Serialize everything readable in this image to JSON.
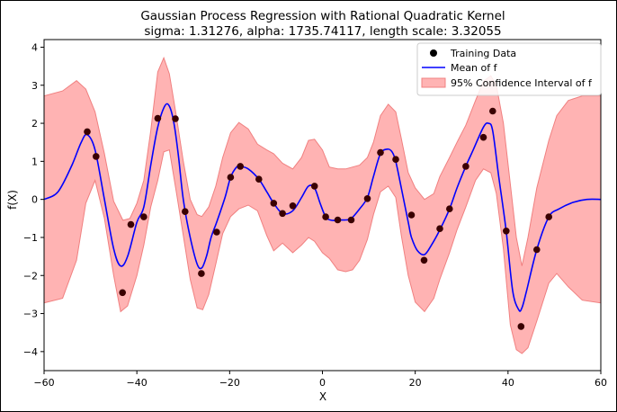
{
  "chart_data": {
    "type": "line",
    "title": "Gaussian Process Regression with Rational Quadratic Kernel",
    "subtitle": "sigma: 1.31276, alpha: 1735.74117, length scale: 3.32055",
    "xlabel": "X",
    "ylabel": "f(X)",
    "xlim": [
      -60,
      60
    ],
    "ylim": [
      -4.5,
      4.2
    ],
    "xticks": [
      "−60",
      "−40",
      "−20",
      "0",
      "20",
      "40",
      "60"
    ],
    "xtick_values": [
      -60,
      -40,
      -20,
      0,
      20,
      40,
      60
    ],
    "yticks": [
      "−4",
      "−3",
      "−2",
      "−1",
      "0",
      "1",
      "2",
      "3",
      "4"
    ],
    "ytick_values": [
      -4,
      -3,
      -2,
      -1,
      0,
      1,
      2,
      3,
      4
    ],
    "grid": false,
    "legend_position": "top-right",
    "legend": {
      "training": "Training Data",
      "mean": "Mean of f",
      "ci": "95% Confidence Interval of f"
    },
    "colors": {
      "mean": "#0000ff",
      "ci_fill": "#ff9999",
      "ci_edge": "#f08080",
      "points": "#3a0000"
    },
    "training_points": [
      [
        -50.7,
        1.78
      ],
      [
        -48.8,
        1.13
      ],
      [
        -43.1,
        -2.45
      ],
      [
        -41.3,
        -0.66
      ],
      [
        -38.5,
        -0.46
      ],
      [
        -35.5,
        2.13
      ],
      [
        -31.7,
        2.12
      ],
      [
        -29.6,
        -0.32
      ],
      [
        -26.1,
        -1.95
      ],
      [
        -22.8,
        -0.86
      ],
      [
        -19.8,
        0.58
      ],
      [
        -17.7,
        0.87
      ],
      [
        -13.7,
        0.53
      ],
      [
        -10.5,
        -0.1
      ],
      [
        -8.6,
        -0.37
      ],
      [
        -6.4,
        -0.17
      ],
      [
        -1.7,
        0.35
      ],
      [
        0.7,
        -0.46
      ],
      [
        3.3,
        -0.54
      ],
      [
        6.2,
        -0.54
      ],
      [
        9.7,
        0.02
      ],
      [
        12.5,
        1.23
      ],
      [
        15.8,
        1.05
      ],
      [
        19.2,
        -0.41
      ],
      [
        21.9,
        -1.6
      ],
      [
        25.3,
        -0.77
      ],
      [
        27.4,
        -0.25
      ],
      [
        30.9,
        0.87
      ],
      [
        34.7,
        1.63
      ],
      [
        36.7,
        2.32
      ],
      [
        39.6,
        -0.83
      ],
      [
        42.8,
        -3.34
      ],
      [
        46.2,
        -1.32
      ],
      [
        48.8,
        -0.46
      ]
    ],
    "mean_curve": {
      "x": [
        -60,
        -57,
        -54,
        -52,
        -50.7,
        -49,
        -47,
        -45,
        -43.5,
        -42,
        -40,
        -38.5,
        -37,
        -35.5,
        -34,
        -33,
        -32,
        -31,
        -30,
        -28.5,
        -27,
        -26,
        -25,
        -24,
        -22.8,
        -21,
        -19.8,
        -18.5,
        -17.7,
        -16,
        -13.7,
        -12,
        -10.5,
        -8.6,
        -6.4,
        -4.5,
        -3,
        -1.7,
        -0.5,
        0.7,
        2,
        3.3,
        5,
        6.2,
        8,
        9.7,
        11,
        12.5,
        14,
        15,
        15.8,
        17,
        18.5,
        19.2,
        20.5,
        22,
        23.5,
        25.3,
        27.4,
        29,
        30.9,
        32.5,
        34.7,
        35.8,
        36.7,
        38,
        39.6,
        41,
        42.3,
        43,
        44,
        46.2,
        48.8,
        51,
        54,
        57,
        60
      ],
      "y": [
        0.0,
        0.2,
        0.9,
        1.5,
        1.7,
        1.3,
        0.0,
        -1.3,
        -1.75,
        -1.5,
        -0.6,
        -0.2,
        0.9,
        1.9,
        2.45,
        2.45,
        2.0,
        1.1,
        0.0,
        -1.0,
        -1.7,
        -1.8,
        -1.5,
        -1.0,
        -0.6,
        0.05,
        0.58,
        0.85,
        0.87,
        0.8,
        0.53,
        0.2,
        -0.1,
        -0.37,
        -0.3,
        0.05,
        0.35,
        0.3,
        -0.1,
        -0.46,
        -0.55,
        -0.54,
        -0.54,
        -0.5,
        -0.25,
        0.05,
        0.6,
        1.2,
        1.32,
        1.25,
        1.0,
        0.3,
        -0.6,
        -1.0,
        -1.35,
        -1.45,
        -1.2,
        -0.8,
        -0.25,
        0.3,
        0.87,
        1.3,
        1.9,
        2.0,
        1.8,
        0.6,
        -0.83,
        -2.4,
        -2.9,
        -2.85,
        -2.4,
        -1.32,
        -0.46,
        -0.25,
        -0.08,
        0.0,
        0.0
      ]
    },
    "ci_upper": {
      "x": [
        -60,
        -56,
        -53,
        -51,
        -49,
        -47,
        -45,
        -43,
        -41.5,
        -40,
        -38.5,
        -37,
        -35.5,
        -34.2,
        -33,
        -31.5,
        -30,
        -28.5,
        -27,
        -26,
        -24.5,
        -23,
        -21.5,
        -19.8,
        -18,
        -16,
        -14,
        -12,
        -10.5,
        -8.6,
        -6.4,
        -4.5,
        -3,
        -1.7,
        0,
        1.5,
        3.3,
        5,
        6.5,
        8,
        9.7,
        11,
        12.5,
        14.2,
        15.8,
        17,
        18.5,
        20,
        22,
        24,
        25.3,
        27.4,
        29,
        30.9,
        33,
        34.7,
        36.3,
        37.5,
        39,
        40.5,
        41.8,
        43,
        44.3,
        46.2,
        48.8,
        50.5,
        53,
        56,
        60
      ],
      "y": [
        2.72,
        2.85,
        3.12,
        2.9,
        2.3,
        1.2,
        -0.05,
        -0.55,
        -0.5,
        -0.1,
        0.5,
        1.8,
        3.35,
        3.72,
        3.3,
        2.2,
        1.0,
        0.0,
        -0.4,
        -0.45,
        -0.2,
        0.35,
        1.1,
        1.75,
        2.02,
        1.85,
        1.45,
        1.3,
        1.2,
        0.95,
        0.8,
        1.1,
        1.55,
        1.58,
        1.3,
        0.85,
        0.8,
        0.8,
        0.85,
        0.9,
        1.1,
        1.5,
        2.2,
        2.5,
        2.3,
        1.6,
        0.7,
        0.3,
        0.0,
        0.15,
        0.6,
        1.1,
        1.5,
        1.95,
        2.6,
        3.1,
        3.25,
        3.0,
        2.0,
        0.4,
        -1.0,
        -1.75,
        -1.0,
        0.3,
        1.55,
        2.2,
        2.6,
        2.72,
        2.72
      ]
    },
    "ci_lower": {
      "x": [
        -60,
        -56,
        -53,
        -51,
        -49,
        -47,
        -45,
        -43.5,
        -42,
        -40,
        -38.5,
        -37,
        -35.5,
        -34.2,
        -33,
        -31.5,
        -30,
        -28.5,
        -27,
        -25.8,
        -24.5,
        -23,
        -21.5,
        -19.8,
        -18,
        -16,
        -14,
        -12,
        -10.5,
        -8.6,
        -6.4,
        -4.5,
        -3,
        -1.7,
        0,
        1.5,
        3.3,
        5,
        6.5,
        8,
        9.7,
        11,
        12.5,
        14.2,
        15.8,
        17,
        18.5,
        20,
        22,
        24,
        25.3,
        27.4,
        29,
        30.9,
        33,
        34.7,
        36.3,
        37.5,
        39,
        40.5,
        41.8,
        43,
        44.3,
        46.2,
        48.8,
        50.5,
        53,
        56,
        60
      ],
      "y": [
        -2.72,
        -2.6,
        -1.6,
        -0.1,
        0.5,
        -0.5,
        -2.0,
        -2.95,
        -2.8,
        -2.0,
        -1.2,
        -0.2,
        0.5,
        1.25,
        1.3,
        0.2,
        -0.95,
        -2.1,
        -2.85,
        -2.9,
        -2.5,
        -1.7,
        -0.9,
        -0.45,
        -0.25,
        -0.15,
        -0.3,
        -0.95,
        -1.35,
        -1.15,
        -1.4,
        -1.2,
        -1.0,
        -1.1,
        -1.4,
        -1.55,
        -1.85,
        -1.9,
        -1.85,
        -1.6,
        -1.05,
        -0.4,
        0.2,
        0.35,
        0.05,
        -0.95,
        -2.0,
        -2.7,
        -2.95,
        -2.6,
        -2.1,
        -1.4,
        -0.8,
        -0.2,
        0.5,
        0.8,
        0.7,
        0.15,
        -1.3,
        -3.3,
        -3.95,
        -4.05,
        -3.9,
        -3.2,
        -2.2,
        -1.95,
        -2.3,
        -2.65,
        -2.72
      ]
    }
  }
}
